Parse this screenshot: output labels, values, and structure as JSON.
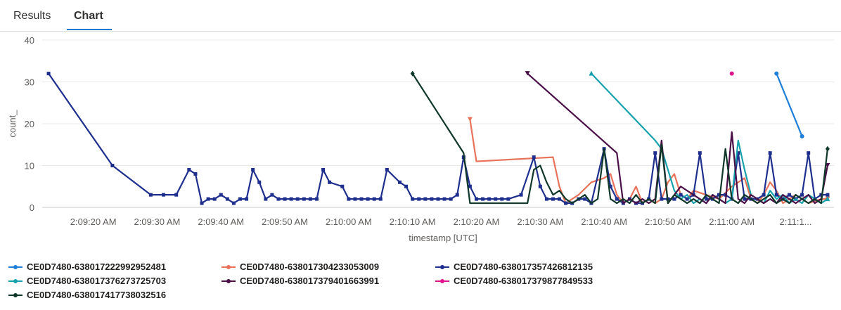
{
  "tabs": [
    {
      "label": "Results",
      "active": false
    },
    {
      "label": "Chart",
      "active": true
    }
  ],
  "chart_data": {
    "type": "line",
    "title": "",
    "xlabel": "timestamp [UTC]",
    "ylabel": "count_",
    "ylim": [
      0,
      40
    ],
    "yticks": [
      0,
      10,
      20,
      30,
      40
    ],
    "xlim": [
      "2:09:12",
      "2:11:16"
    ],
    "xticks": [
      {
        "t": "2:09:20",
        "label": "2:09:20 AM"
      },
      {
        "t": "2:09:30",
        "label": "2:09:30 AM"
      },
      {
        "t": "2:09:40",
        "label": "2:09:40 AM"
      },
      {
        "t": "2:09:50",
        "label": "2:09:50 AM"
      },
      {
        "t": "2:10:00",
        "label": "2:10:00 AM"
      },
      {
        "t": "2:10:10",
        "label": "2:10:10 AM"
      },
      {
        "t": "2:10:20",
        "label": "2:10:20 AM"
      },
      {
        "t": "2:10:30",
        "label": "2:10:30 AM"
      },
      {
        "t": "2:10:40",
        "label": "2:10:40 AM"
      },
      {
        "t": "2:10:50",
        "label": "2:10:50 AM"
      },
      {
        "t": "2:11:00",
        "label": "2:11:00 AM"
      },
      {
        "t": "2:11:10",
        "label": "2:11:1..."
      }
    ],
    "grid": true,
    "legend_position": "bottom",
    "series": [
      {
        "name": "CE0D7480-638017222992952481",
        "color": "#1f7ed8",
        "marker": "circle",
        "x": [
          "2:11:07",
          "2:11:11"
        ],
        "y": [
          32,
          17
        ]
      },
      {
        "name": "CE0D7480-638017304233053009",
        "color": "#e8735a",
        "marker": "tick",
        "x": [
          "2:10:19",
          "2:10:20",
          "2:10:32",
          "2:10:33",
          "2:10:34",
          "2:10:35",
          "2:10:36",
          "2:10:38",
          "2:10:40",
          "2:10:41",
          "2:10:42",
          "2:10:43",
          "2:10:44",
          "2:10:45",
          "2:10:46",
          "2:10:47",
          "2:10:48",
          "2:10:49",
          "2:10:50",
          "2:10:51",
          "2:10:52",
          "2:10:53",
          "2:10:54",
          "2:10:56",
          "2:10:58",
          "2:11:00",
          "2:11:02",
          "2:11:03",
          "2:11:04",
          "2:11:05",
          "2:11:06",
          "2:11:07",
          "2:11:08",
          "2:11:09",
          "2:11:10",
          "2:11:12",
          "2:11:14",
          "2:11:15"
        ],
        "y": [
          21,
          11,
          12,
          5,
          1,
          2,
          3,
          6,
          7,
          8,
          3,
          1,
          2,
          5,
          1,
          2,
          1,
          2,
          6,
          8,
          3,
          2,
          4,
          3,
          2,
          5,
          7,
          2,
          1,
          3,
          6,
          4,
          1,
          2,
          3,
          1,
          2,
          2
        ]
      },
      {
        "name": "CE0D7480-638017357426812135",
        "color": "#1e2f8e",
        "marker": "square",
        "x": [
          "2:09:13",
          "2:09:23",
          "2:09:29",
          "2:09:31",
          "2:09:33",
          "2:09:35",
          "2:09:36",
          "2:09:37",
          "2:09:38",
          "2:09:39",
          "2:09:40",
          "2:09:41",
          "2:09:42",
          "2:09:43",
          "2:09:44",
          "2:09:45",
          "2:09:46",
          "2:09:47",
          "2:09:48",
          "2:09:49",
          "2:09:50",
          "2:09:51",
          "2:09:52",
          "2:09:53",
          "2:09:54",
          "2:09:55",
          "2:09:56",
          "2:09:57",
          "2:09:59",
          "2:10:00",
          "2:10:01",
          "2:10:02",
          "2:10:03",
          "2:10:04",
          "2:10:05",
          "2:10:06",
          "2:10:08",
          "2:10:09",
          "2:10:10",
          "2:10:11",
          "2:10:12",
          "2:10:13",
          "2:10:14",
          "2:10:15",
          "2:10:16",
          "2:10:17",
          "2:10:18",
          "2:10:19",
          "2:10:20",
          "2:10:21",
          "2:10:22",
          "2:10:23",
          "2:10:24",
          "2:10:25",
          "2:10:27",
          "2:10:29",
          "2:10:30",
          "2:10:31",
          "2:10:32",
          "2:10:33",
          "2:10:34",
          "2:10:35",
          "2:10:36",
          "2:10:37",
          "2:10:38",
          "2:10:40",
          "2:10:41",
          "2:10:42",
          "2:10:43",
          "2:10:44",
          "2:10:45",
          "2:10:46",
          "2:10:47",
          "2:10:48",
          "2:10:49",
          "2:10:50",
          "2:10:51",
          "2:10:52",
          "2:10:53",
          "2:10:54",
          "2:10:55",
          "2:10:56",
          "2:10:57",
          "2:10:58",
          "2:10:59",
          "2:11:00",
          "2:11:01",
          "2:11:02",
          "2:11:03",
          "2:11:04",
          "2:11:05",
          "2:11:06",
          "2:11:07",
          "2:11:08",
          "2:11:09",
          "2:11:10",
          "2:11:11",
          "2:11:12",
          "2:11:13",
          "2:11:14",
          "2:11:15"
        ],
        "y": [
          32,
          10,
          3,
          3,
          3,
          9,
          8,
          1,
          2,
          2,
          3,
          2,
          1,
          2,
          2,
          9,
          6,
          2,
          3,
          2,
          2,
          2,
          2,
          2,
          2,
          2,
          9,
          6,
          5,
          2,
          2,
          2,
          2,
          2,
          2,
          9,
          6,
          5,
          2,
          2,
          2,
          2,
          2,
          2,
          2,
          3,
          12,
          5,
          2,
          2,
          2,
          2,
          2,
          2,
          3,
          12,
          5,
          2,
          2,
          2,
          1,
          1,
          2,
          2,
          1,
          14,
          5,
          2,
          1,
          2,
          1,
          1,
          2,
          13,
          2,
          2,
          2,
          3,
          2,
          3,
          13,
          2,
          2,
          3,
          3,
          2,
          13,
          2,
          2,
          2,
          3,
          13,
          3,
          2,
          3,
          2,
          3,
          13,
          2,
          3,
          3
        ]
      },
      {
        "name": "CE0D7480-638017376273725703",
        "color": "#17a2ad",
        "marker": "triangle",
        "x": [
          "2:10:38",
          "2:10:48",
          "2:10:49",
          "2:10:50",
          "2:10:51",
          "2:10:52",
          "2:10:53",
          "2:10:54",
          "2:10:55",
          "2:10:56",
          "2:10:57",
          "2:10:58",
          "2:10:59",
          "2:11:00",
          "2:11:01",
          "2:11:02",
          "2:11:03",
          "2:11:04",
          "2:11:05",
          "2:11:06",
          "2:11:07",
          "2:11:08",
          "2:11:09",
          "2:11:10",
          "2:11:11",
          "2:11:12",
          "2:11:13",
          "2:11:14",
          "2:11:15"
        ],
        "y": [
          32,
          16,
          14,
          9,
          4,
          2,
          3,
          1,
          2,
          1,
          3,
          2,
          1,
          2,
          16,
          9,
          3,
          2,
          1,
          4,
          2,
          3,
          1,
          2,
          1,
          3,
          2,
          1,
          2
        ]
      },
      {
        "name": "CE0D7480-638017379401663991",
        "color": "#4b0f48",
        "marker": "tick",
        "x": [
          "2:10:28",
          "2:10:42",
          "2:10:43",
          "2:10:44",
          "2:10:45",
          "2:10:46",
          "2:10:47",
          "2:10:48",
          "2:10:49",
          "2:10:50",
          "2:10:51",
          "2:10:52",
          "2:10:53",
          "2:10:54",
          "2:10:55",
          "2:10:56",
          "2:10:57",
          "2:10:58",
          "2:10:59",
          "2:11:00",
          "2:11:01",
          "2:11:02",
          "2:11:03",
          "2:11:04",
          "2:11:05",
          "2:11:06",
          "2:11:07",
          "2:11:08",
          "2:11:09",
          "2:11:10",
          "2:11:11",
          "2:11:12",
          "2:11:13",
          "2:11:14",
          "2:11:15"
        ],
        "y": [
          32,
          13,
          1,
          2,
          1,
          2,
          1,
          2,
          16,
          1,
          3,
          5,
          4,
          3,
          2,
          1,
          3,
          2,
          1,
          18,
          2,
          1,
          3,
          2,
          1,
          2,
          1,
          3,
          2,
          1,
          2,
          3,
          1,
          2,
          10
        ]
      },
      {
        "name": "CE0D7480-638017379877849533",
        "color": "#e0148c",
        "marker": "circle",
        "x": [
          "2:11:00"
        ],
        "y": [
          32
        ]
      },
      {
        "name": "CE0D7480-638017417738032516",
        "color": "#10382a",
        "marker": "diamond",
        "x": [
          "2:10:10",
          "2:10:18",
          "2:10:19",
          "2:10:20",
          "2:10:21",
          "2:10:22",
          "2:10:23",
          "2:10:24",
          "2:10:25",
          "2:10:26",
          "2:10:27",
          "2:10:28",
          "2:10:29",
          "2:10:30",
          "2:10:31",
          "2:10:32",
          "2:10:33",
          "2:10:34",
          "2:10:35",
          "2:10:36",
          "2:10:37",
          "2:10:38",
          "2:10:39",
          "2:10:40",
          "2:10:41",
          "2:10:42",
          "2:10:43",
          "2:10:44",
          "2:10:45",
          "2:10:46",
          "2:10:47",
          "2:10:48",
          "2:10:49",
          "2:10:50",
          "2:10:51",
          "2:10:52",
          "2:10:53",
          "2:10:54",
          "2:10:55",
          "2:10:56",
          "2:10:57",
          "2:10:58",
          "2:10:59",
          "2:11:00",
          "2:11:01",
          "2:11:02",
          "2:11:03",
          "2:11:04",
          "2:11:05",
          "2:11:06",
          "2:11:07",
          "2:11:08",
          "2:11:09",
          "2:11:10",
          "2:11:11",
          "2:11:12",
          "2:11:13",
          "2:11:14",
          "2:11:15"
        ],
        "y": [
          32,
          13,
          1,
          1,
          1,
          1,
          1,
          1,
          1,
          1,
          1,
          1,
          9,
          10,
          6,
          3,
          4,
          2,
          1,
          2,
          3,
          1,
          2,
          14,
          2,
          1,
          2,
          1,
          3,
          1,
          2,
          1,
          15,
          1,
          3,
          2,
          1,
          2,
          1,
          3,
          2,
          1,
          14,
          2,
          1,
          3,
          2,
          1,
          2,
          3,
          1,
          2,
          1,
          3,
          2,
          1,
          2,
          1,
          14
        ]
      }
    ]
  }
}
